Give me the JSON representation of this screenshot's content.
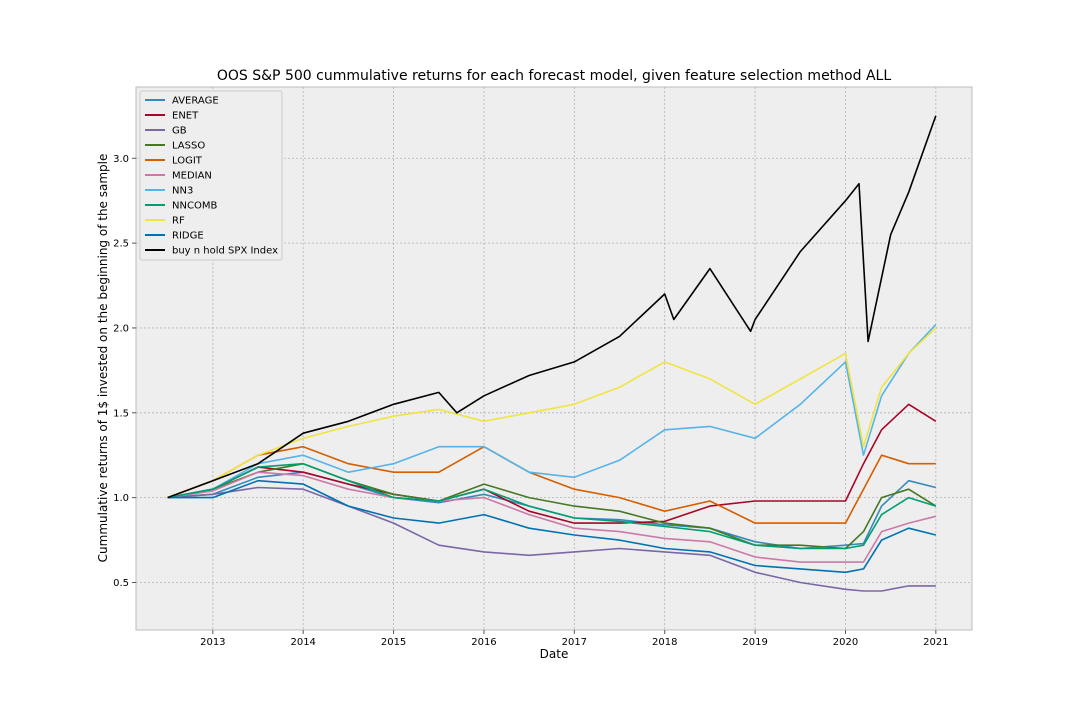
{
  "chart_data": {
    "type": "line",
    "title": "OOS S&P 500 cummulative returns for each forecast model, given feature selection method ALL",
    "xlabel": "Date",
    "ylabel": "Cummulative returns of 1$ invested on the beginning of the sample",
    "xlim": [
      2012.15,
      2021.4
    ],
    "ylim": [
      0.22,
      3.42
    ],
    "xticks": [
      2013,
      2014,
      2015,
      2016,
      2017,
      2018,
      2019,
      2020,
      2021
    ],
    "xtick_labels": [
      "2013",
      "2014",
      "2015",
      "2016",
      "2017",
      "2018",
      "2019",
      "2020",
      "2021"
    ],
    "yticks": [
      0.5,
      1.0,
      1.5,
      2.0,
      2.5,
      3.0
    ],
    "ytick_labels": [
      "0.5",
      "1.0",
      "1.5",
      "2.0",
      "2.5",
      "3.0"
    ],
    "grid": true,
    "legend_position": "top-left",
    "series": [
      {
        "name": "AVERAGE",
        "color": "#348ABD",
        "x": [
          2012.5,
          2013.0,
          2013.5,
          2014.0,
          2014.5,
          2015.0,
          2015.5,
          2016.0,
          2016.5,
          2017.0,
          2017.5,
          2018.0,
          2018.5,
          2019.0,
          2019.5,
          2020.0,
          2020.2,
          2020.4,
          2020.7,
          2021.0
        ],
        "y": [
          1.0,
          1.02,
          1.12,
          1.15,
          1.08,
          1.0,
          0.97,
          1.02,
          0.95,
          0.88,
          0.87,
          0.84,
          0.82,
          0.74,
          0.7,
          0.72,
          0.73,
          0.95,
          1.1,
          1.06
        ]
      },
      {
        "name": "ENET",
        "color": "#A60628",
        "x": [
          2012.5,
          2013.0,
          2013.5,
          2014.0,
          2014.5,
          2015.0,
          2015.5,
          2016.0,
          2016.5,
          2017.0,
          2017.5,
          2018.0,
          2018.5,
          2019.0,
          2019.5,
          2020.0,
          2020.2,
          2020.4,
          2020.7,
          2021.0
        ],
        "y": [
          1.0,
          1.05,
          1.18,
          1.15,
          1.08,
          1.02,
          0.98,
          1.05,
          0.92,
          0.85,
          0.85,
          0.86,
          0.95,
          0.98,
          0.98,
          0.98,
          1.2,
          1.4,
          1.55,
          1.45
        ]
      },
      {
        "name": "GB",
        "color": "#7A68A6",
        "x": [
          2012.5,
          2013.0,
          2013.5,
          2014.0,
          2014.5,
          2015.0,
          2015.5,
          2016.0,
          2016.5,
          2017.0,
          2017.5,
          2018.0,
          2018.5,
          2019.0,
          2019.5,
          2020.0,
          2020.2,
          2020.4,
          2020.7,
          2021.0
        ],
        "y": [
          1.0,
          1.02,
          1.06,
          1.05,
          0.95,
          0.85,
          0.72,
          0.68,
          0.66,
          0.68,
          0.7,
          0.68,
          0.66,
          0.56,
          0.5,
          0.46,
          0.45,
          0.45,
          0.48,
          0.48
        ]
      },
      {
        "name": "LASSO",
        "color": "#467821",
        "x": [
          2012.5,
          2013.0,
          2013.5,
          2014.0,
          2014.5,
          2015.0,
          2015.5,
          2016.0,
          2016.5,
          2017.0,
          2017.5,
          2018.0,
          2018.5,
          2019.0,
          2019.5,
          2020.0,
          2020.2,
          2020.4,
          2020.7,
          2021.0
        ],
        "y": [
          1.0,
          1.05,
          1.15,
          1.2,
          1.1,
          1.02,
          0.98,
          1.08,
          1.0,
          0.95,
          0.92,
          0.85,
          0.82,
          0.72,
          0.72,
          0.7,
          0.8,
          1.0,
          1.05,
          0.95
        ]
      },
      {
        "name": "LOGIT",
        "color": "#D55E00",
        "x": [
          2012.5,
          2013.0,
          2013.5,
          2014.0,
          2014.5,
          2015.0,
          2015.5,
          2016.0,
          2016.5,
          2017.0,
          2017.5,
          2018.0,
          2018.5,
          2019.0,
          2019.5,
          2020.0,
          2020.2,
          2020.4,
          2020.7,
          2021.0
        ],
        "y": [
          1.0,
          1.1,
          1.25,
          1.3,
          1.2,
          1.15,
          1.15,
          1.3,
          1.15,
          1.05,
          1.0,
          0.92,
          0.98,
          0.85,
          0.85,
          0.85,
          1.05,
          1.25,
          1.2,
          1.2
        ]
      },
      {
        "name": "MEDIAN",
        "color": "#CC79A7",
        "x": [
          2012.5,
          2013.0,
          2013.5,
          2014.0,
          2014.5,
          2015.0,
          2015.5,
          2016.0,
          2016.5,
          2017.0,
          2017.5,
          2018.0,
          2018.5,
          2019.0,
          2019.5,
          2020.0,
          2020.2,
          2020.4,
          2020.7,
          2021.0
        ],
        "y": [
          1.0,
          1.04,
          1.15,
          1.13,
          1.05,
          1.0,
          0.98,
          1.0,
          0.9,
          0.82,
          0.8,
          0.76,
          0.74,
          0.65,
          0.62,
          0.62,
          0.62,
          0.8,
          0.85,
          0.89
        ]
      },
      {
        "name": "NN3",
        "color": "#56B4E9",
        "x": [
          2012.5,
          2013.0,
          2013.5,
          2014.0,
          2014.5,
          2015.0,
          2015.5,
          2016.0,
          2016.5,
          2017.0,
          2017.5,
          2018.0,
          2018.5,
          2019.0,
          2019.5,
          2020.0,
          2020.2,
          2020.4,
          2020.7,
          2021.0
        ],
        "y": [
          1.0,
          1.05,
          1.2,
          1.25,
          1.15,
          1.2,
          1.3,
          1.3,
          1.15,
          1.12,
          1.22,
          1.4,
          1.42,
          1.35,
          1.55,
          1.8,
          1.25,
          1.6,
          1.85,
          2.02
        ]
      },
      {
        "name": "NNCOMB",
        "color": "#009E73",
        "x": [
          2012.5,
          2013.0,
          2013.5,
          2014.0,
          2014.5,
          2015.0,
          2015.5,
          2016.0,
          2016.5,
          2017.0,
          2017.5,
          2018.0,
          2018.5,
          2019.0,
          2019.5,
          2020.0,
          2020.2,
          2020.4,
          2020.7,
          2021.0
        ],
        "y": [
          1.0,
          1.05,
          1.18,
          1.2,
          1.1,
          1.0,
          0.98,
          1.05,
          0.95,
          0.88,
          0.86,
          0.83,
          0.8,
          0.72,
          0.7,
          0.7,
          0.72,
          0.9,
          1.0,
          0.95
        ]
      },
      {
        "name": "RF",
        "color": "#F0E442",
        "x": [
          2012.5,
          2013.0,
          2013.5,
          2014.0,
          2014.5,
          2015.0,
          2015.5,
          2016.0,
          2016.5,
          2017.0,
          2017.5,
          2018.0,
          2018.5,
          2019.0,
          2019.5,
          2020.0,
          2020.2,
          2020.4,
          2020.7,
          2021.0
        ],
        "y": [
          1.0,
          1.1,
          1.25,
          1.35,
          1.42,
          1.48,
          1.52,
          1.45,
          1.5,
          1.55,
          1.65,
          1.8,
          1.7,
          1.55,
          1.7,
          1.85,
          1.3,
          1.65,
          1.85,
          2.0
        ]
      },
      {
        "name": "RIDGE",
        "color": "#0072B2",
        "x": [
          2012.5,
          2013.0,
          2013.5,
          2014.0,
          2014.5,
          2015.0,
          2015.5,
          2016.0,
          2016.5,
          2017.0,
          2017.5,
          2018.0,
          2018.5,
          2019.0,
          2019.5,
          2020.0,
          2020.2,
          2020.4,
          2020.7,
          2021.0
        ],
        "y": [
          1.0,
          1.0,
          1.1,
          1.08,
          0.95,
          0.88,
          0.85,
          0.9,
          0.82,
          0.78,
          0.75,
          0.7,
          0.68,
          0.6,
          0.58,
          0.56,
          0.58,
          0.75,
          0.82,
          0.78
        ]
      },
      {
        "name": "buy n hold SPX Index",
        "color": "#000000",
        "x": [
          2012.5,
          2013.0,
          2013.5,
          2014.0,
          2014.5,
          2015.0,
          2015.5,
          2015.7,
          2016.0,
          2016.5,
          2017.0,
          2017.5,
          2018.0,
          2018.1,
          2018.5,
          2018.95,
          2019.0,
          2019.5,
          2020.0,
          2020.15,
          2020.25,
          2020.5,
          2020.7,
          2021.0
        ],
        "y": [
          1.0,
          1.1,
          1.2,
          1.38,
          1.45,
          1.55,
          1.62,
          1.5,
          1.6,
          1.72,
          1.8,
          1.95,
          2.2,
          2.05,
          2.35,
          1.98,
          2.05,
          2.45,
          2.75,
          2.85,
          1.92,
          2.55,
          2.8,
          3.25
        ]
      }
    ]
  }
}
